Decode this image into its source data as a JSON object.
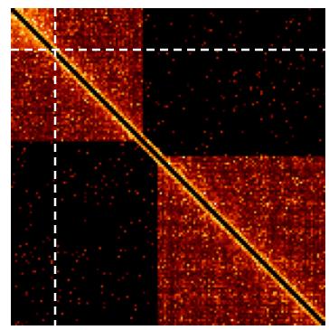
{
  "image": {
    "kind": "interaction heatmap",
    "colormap": [
      "#000000",
      "#3a0000",
      "#8b0000",
      "#d83000",
      "#ff8c00",
      "#ffd84a",
      "#ffffe0"
    ],
    "background": "#000000",
    "guide_line_color": "#ffffff"
  },
  "matrix": {
    "blocks": [
      {
        "label": "",
        "start": 0.0,
        "end": 0.42
      },
      {
        "label": "",
        "start": 0.47,
        "end": 1.0
      }
    ],
    "crosshair": {
      "row": 0.13,
      "col": 0.14
    }
  }
}
